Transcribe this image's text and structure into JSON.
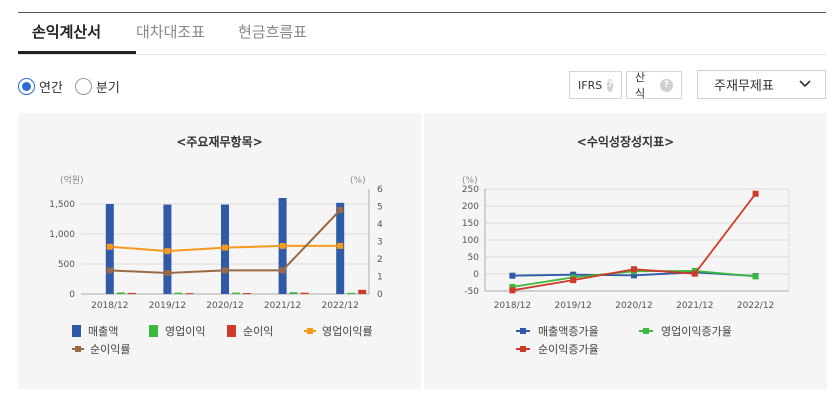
{
  "tabs": [
    {
      "label": "손익계산서",
      "active": true
    },
    {
      "label": "대차대조표",
      "active": false
    },
    {
      "label": "현금흐름표",
      "active": false
    }
  ],
  "period": {
    "options": [
      {
        "label": "연간",
        "checked": true
      },
      {
        "label": "분기",
        "checked": false
      }
    ]
  },
  "toolbar": {
    "ifrs_label": "IFRS",
    "formula_label": "산식",
    "help_glyph": "?",
    "statement_select": "주재무제표"
  },
  "colors": {
    "revenue": "#2e5aa8",
    "op_profit": "#3cb83c",
    "net_profit": "#d03a2a",
    "op_margin": "#f59a1d",
    "net_margin": "#9a6a44",
    "rev_growth": "#2e5aa8",
    "op_growth": "#3cb83c",
    "net_growth": "#d03a2a"
  },
  "chart_data": [
    {
      "type": "bar",
      "title": "<주요재무항목>",
      "y_unit_left": "(억원)",
      "y_unit_right": "(%)",
      "categories": [
        "2018/12",
        "2019/12",
        "2020/12",
        "2021/12",
        "2022/12"
      ],
      "ylim_left": [
        0,
        1750
      ],
      "yticks_left": [
        "0",
        "500",
        "1,000",
        "1,500"
      ],
      "ylim_right": [
        0,
        6
      ],
      "yticks_right": [
        "0",
        "1",
        "2",
        "3",
        "4",
        "5",
        "6"
      ],
      "bar_series": [
        {
          "name": "매출액",
          "values": [
            1500,
            1490,
            1490,
            1600,
            1520
          ]
        },
        {
          "name": "영업이익",
          "values": [
            25,
            22,
            23,
            30,
            20
          ]
        },
        {
          "name": "순이익",
          "values": [
            18,
            14,
            16,
            22,
            70
          ]
        }
      ],
      "line_series": [
        {
          "name": "영업이익률",
          "values": [
            2.7,
            2.45,
            2.65,
            2.75,
            2.75
          ]
        },
        {
          "name": "순이익률",
          "values": [
            1.35,
            1.2,
            1.35,
            1.35,
            4.8
          ]
        }
      ],
      "legend": [
        "매출액",
        "영업이익",
        "순이익",
        "영업이익률",
        "순이익률"
      ]
    },
    {
      "type": "line",
      "title": "<수익성장성지표>",
      "y_unit_left": "(%)",
      "categories": [
        "2018/12",
        "2019/12",
        "2020/12",
        "2021/12",
        "2022/12"
      ],
      "ylim": [
        -50,
        250
      ],
      "yticks": [
        "-50",
        "0",
        "50",
        "100",
        "150",
        "200",
        "250"
      ],
      "series": [
        {
          "name": "매출액증가율",
          "values": [
            -5,
            -2,
            -4,
            5,
            -6
          ]
        },
        {
          "name": "영업이익증가율",
          "values": [
            -38,
            -10,
            8,
            9,
            -7
          ]
        },
        {
          "name": "순이익증가율",
          "values": [
            -48,
            -18,
            14,
            1,
            236
          ]
        }
      ],
      "legend": [
        "매출액증가율",
        "영업이익증가율",
        "순이익증가율"
      ]
    }
  ]
}
